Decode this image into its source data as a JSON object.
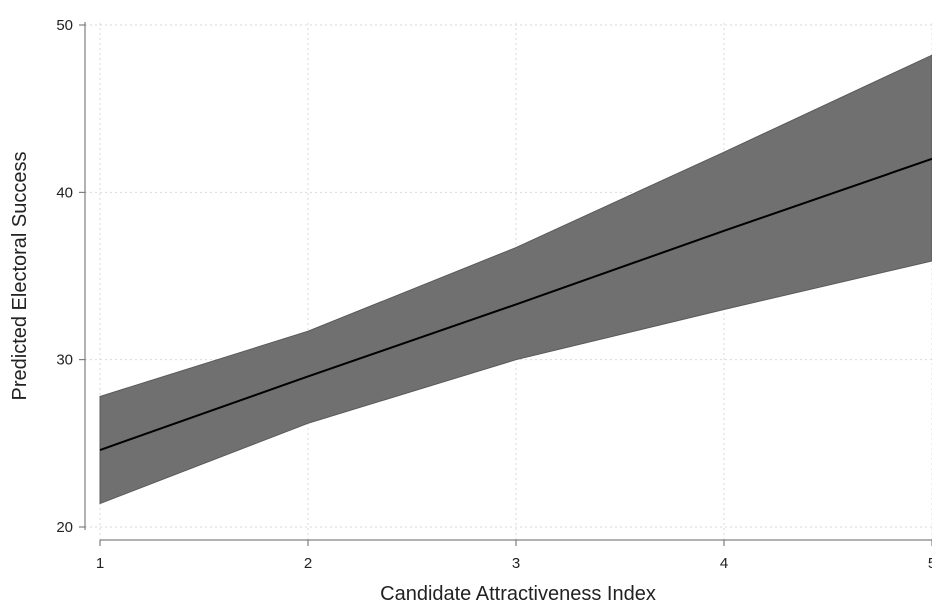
{
  "chart_data": {
    "type": "line",
    "title": "",
    "xlabel": "Candidate Attractiveness Index",
    "ylabel": "Predicted Electoral Success",
    "xlim": [
      1,
      5
    ],
    "ylim": [
      20,
      50
    ],
    "x_ticks": [
      "1",
      "2",
      "3",
      "4",
      "5"
    ],
    "y_ticks": [
      "20",
      "30",
      "40",
      "50"
    ],
    "grid": true,
    "legend": "none",
    "series": [
      {
        "x": [
          1,
          2,
          3,
          4,
          5
        ],
        "values": [
          24.6,
          29.0,
          33.3,
          37.7,
          42.0
        ],
        "lower": [
          21.4,
          26.2,
          30.0,
          33.0,
          35.9
        ],
        "upper": [
          27.8,
          31.7,
          36.7,
          42.4,
          48.2
        ],
        "line_color": "#000000",
        "band_color": "#707070"
      }
    ]
  }
}
